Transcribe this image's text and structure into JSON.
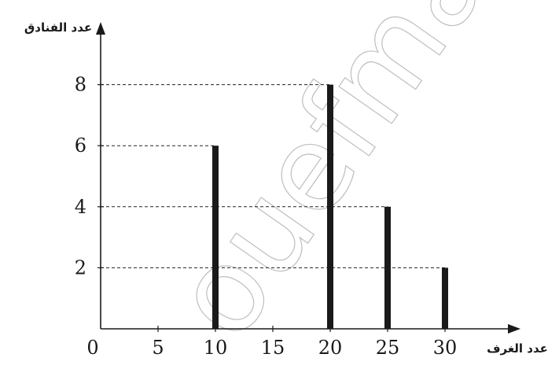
{
  "chart_data": {
    "type": "bar",
    "x": [
      10,
      20,
      25,
      30
    ],
    "values": [
      6,
      8,
      4,
      2
    ],
    "xlabel": "عدد الغرف",
    "ylabel": "عدد الفنادق",
    "x_ticks": [
      "0",
      "5",
      "10",
      "15",
      "20",
      "25",
      "30"
    ],
    "y_ticks": [
      "2",
      "4",
      "6",
      "8"
    ],
    "xlim": [
      0,
      35
    ],
    "ylim": [
      0,
      10
    ],
    "grid": "dashed guide lines to each bar top",
    "colors": {
      "bars": "#1a1a1a",
      "axes": "#1a1a1a",
      "watermark": "#bdbdbd"
    }
  },
  "watermark": "ouefmath.eu"
}
